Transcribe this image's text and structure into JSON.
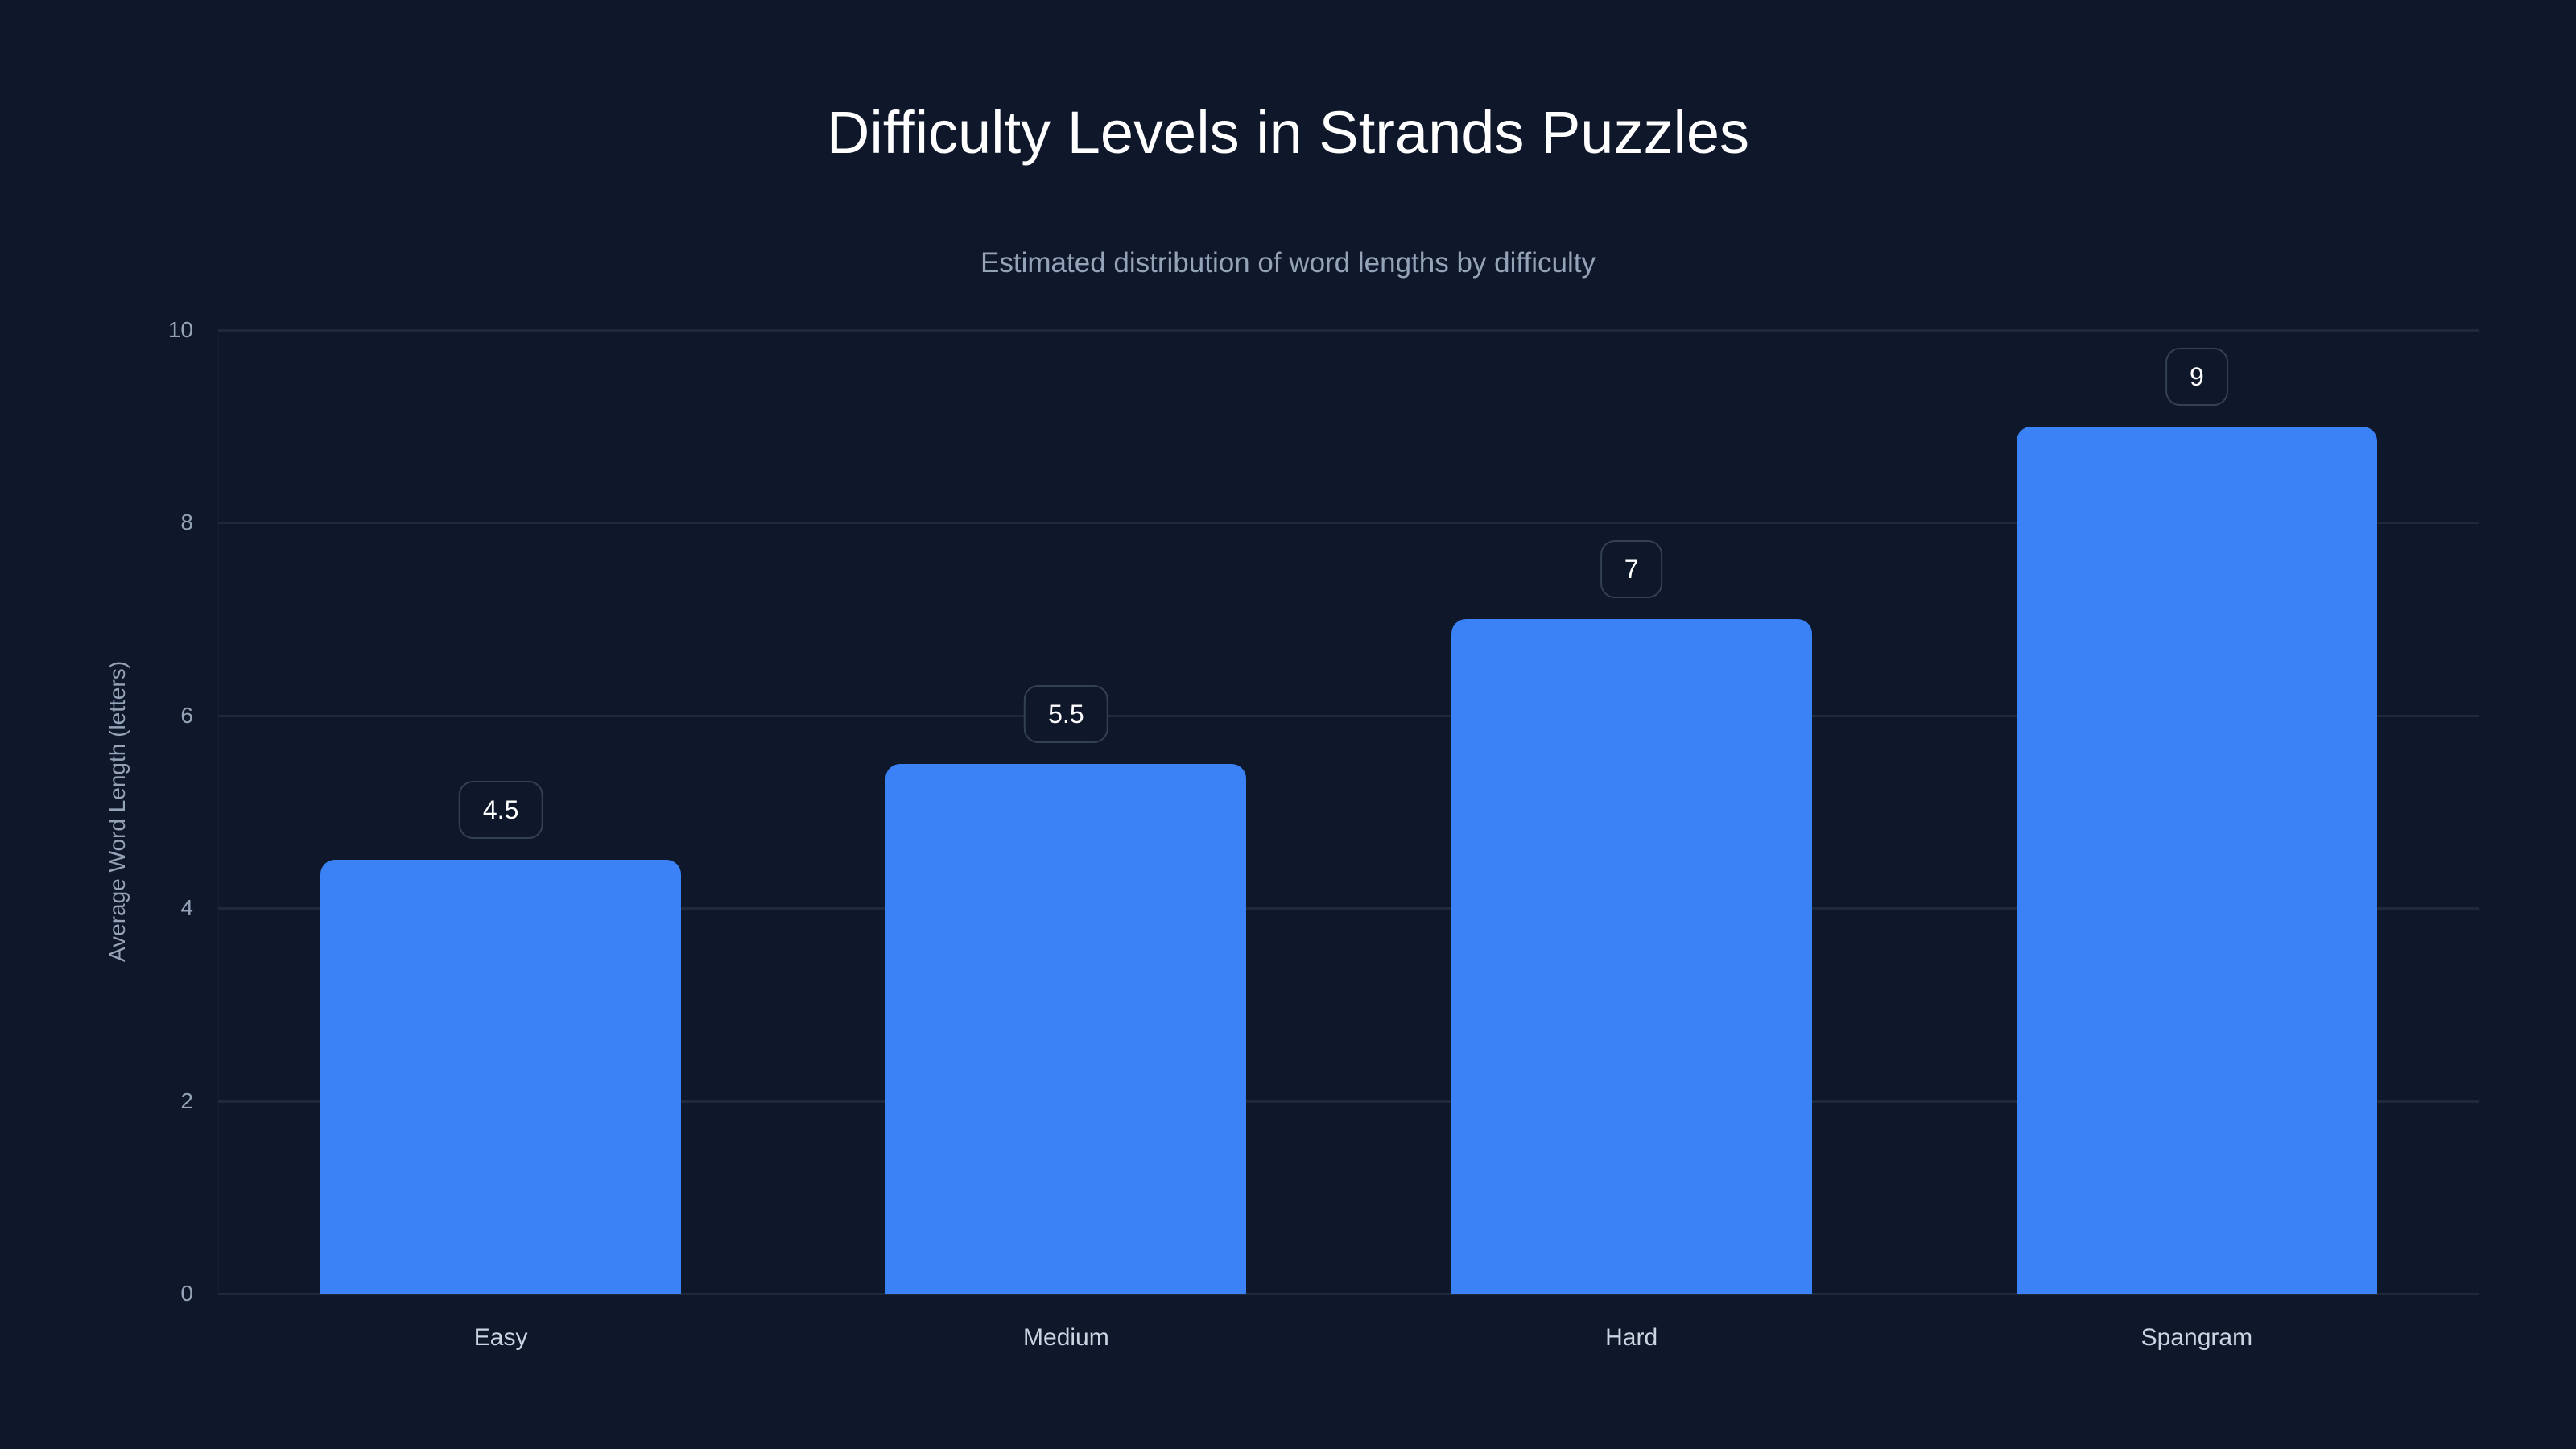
{
  "title": "Difficulty Levels in Strands Puzzles",
  "subtitle": "Estimated distribution of word lengths by difficulty",
  "colors": {
    "background": "#0f172a",
    "bar": "#3b82f6",
    "grid": "#1e293b",
    "pill_border": "#334155"
  },
  "chart_data": {
    "type": "bar",
    "title": "Difficulty Levels in Strands Puzzles",
    "subtitle": "Estimated distribution of word lengths by difficulty",
    "categories": [
      "Easy",
      "Medium",
      "Hard",
      "Spangram"
    ],
    "values": [
      4.5,
      5.5,
      7,
      9
    ],
    "value_labels": [
      "4.5",
      "5.5",
      "7",
      "9"
    ],
    "xlabel": "",
    "ylabel": "Average Word Length (letters)",
    "ylim": [
      0,
      10
    ],
    "yticks": [
      "0",
      "2",
      "4",
      "6",
      "8",
      "10"
    ],
    "grid": true,
    "legend": "none"
  }
}
